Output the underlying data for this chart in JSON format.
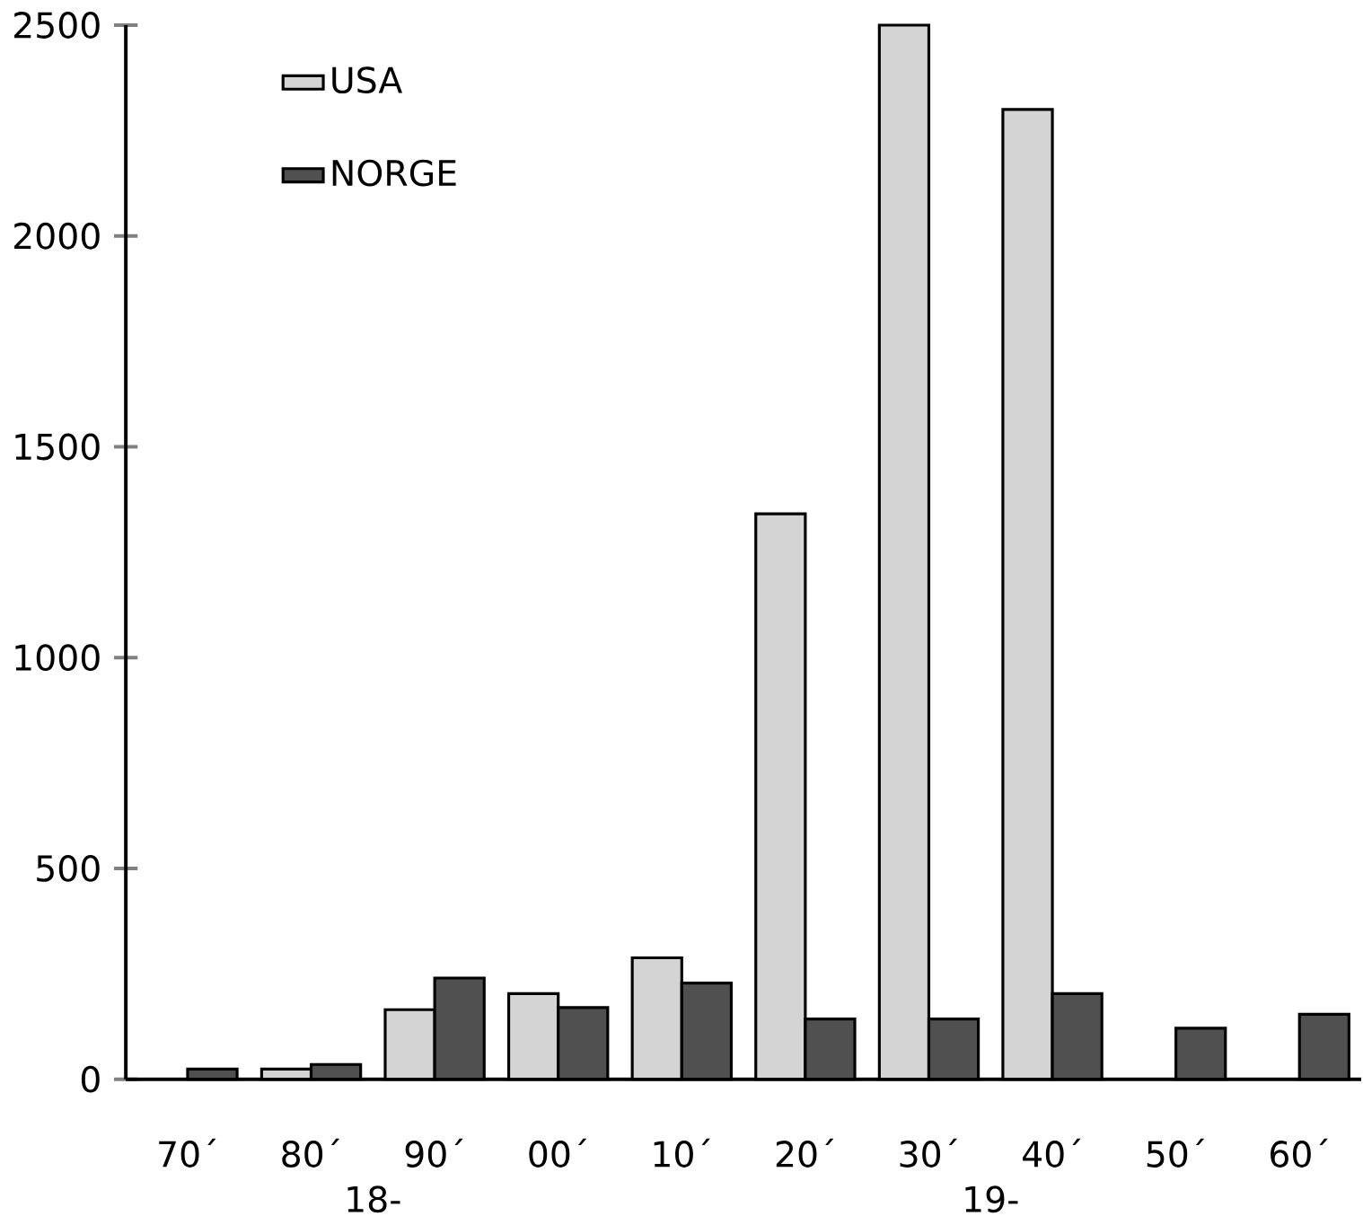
{
  "chart_data": {
    "type": "bar",
    "categories": [
      "70´",
      "80´",
      "90´",
      "00´",
      "10´",
      "20´",
      "30´",
      "40´",
      "50´",
      "60´"
    ],
    "series": [
      {
        "name": "USA",
        "color": "#d4d4d4",
        "values": [
          null,
          24,
          165,
          203,
          288,
          1341,
          2500,
          2300,
          null,
          null
        ]
      },
      {
        "name": "NORGE",
        "color": "#505050",
        "values": [
          24,
          35,
          240,
          170,
          228,
          143,
          143,
          203,
          121,
          154
        ]
      }
    ],
    "ylim": [
      0,
      2500
    ],
    "yticks": [
      0,
      500,
      1000,
      1500,
      2000,
      2500
    ],
    "grid": false,
    "legend": "top left",
    "annotations": [
      "18-",
      "19-"
    ]
  }
}
